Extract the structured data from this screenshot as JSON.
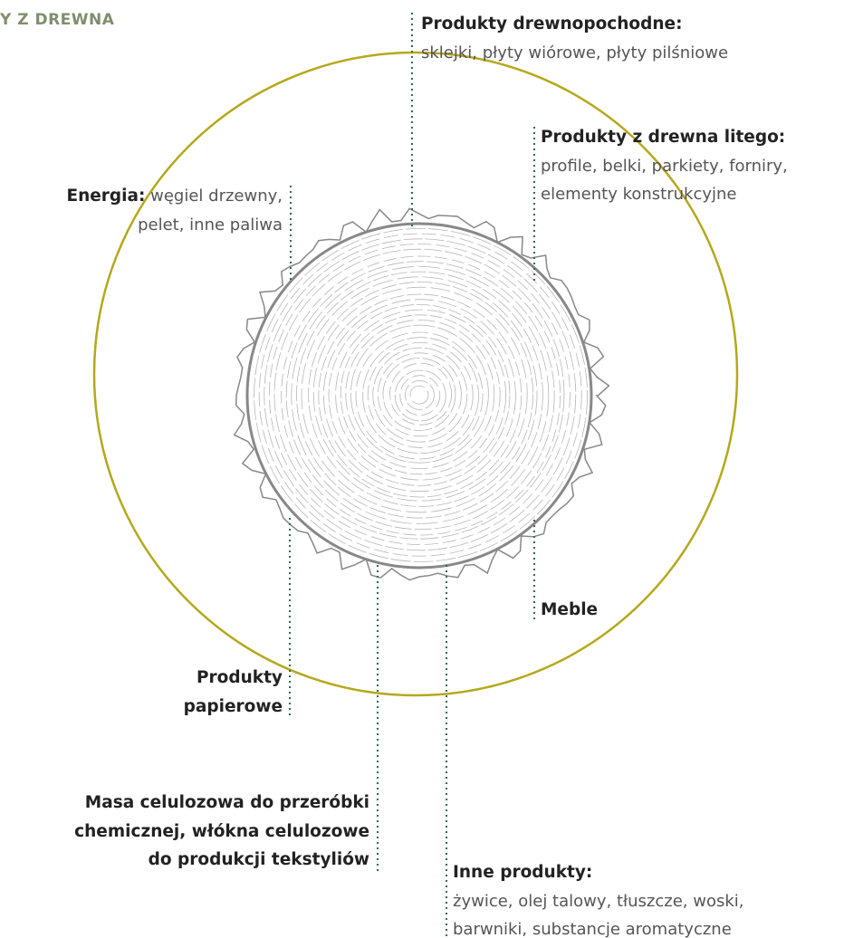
{
  "header": {
    "title": "Y Z DREWNA"
  },
  "labels": [
    {
      "title": [
        "Produkty drewnopochodne:"
      ],
      "text": [
        "sklejki, płyty wiórowe, płyty pilśniowe"
      ]
    },
    {
      "title": [
        "Produkty z drewna litego:"
      ],
      "text": [
        "profile, belki, parkiety, forniry,",
        "elementy konstrukcyjne"
      ]
    },
    {
      "title": [
        "Energia:"
      ],
      "text": [
        "węgiel drzewny,",
        "pelet, inne paliwa"
      ]
    },
    {
      "title": [
        "Meble"
      ]
    },
    {
      "title": [
        "Produkty",
        "papierowe"
      ]
    },
    {
      "title": [
        "Masa celulozowa do przeróbki",
        "chemicznej, włókna celulozowe",
        "do produkcji tekstyliów"
      ]
    },
    {
      "title": [
        "Inne produkty:"
      ],
      "text": [
        "żywice, olej talowy, tłuszcze, woski,",
        "barwniki, substancje aromatyczne"
      ]
    }
  ]
}
